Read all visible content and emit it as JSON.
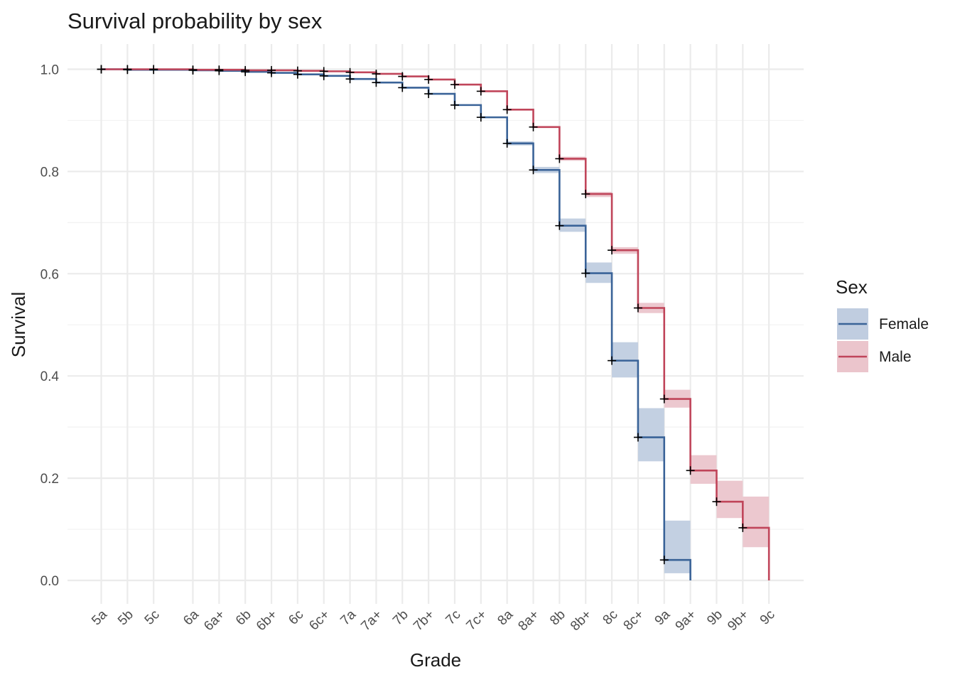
{
  "chart_data": {
    "type": "line",
    "subtype": "kaplan-meier step survival curve with confidence bands",
    "title": "Survival probability by sex",
    "xlabel": "Grade",
    "ylabel": "Survival",
    "ylim": [
      0,
      1
    ],
    "yticks": [
      "0.0",
      "0.2",
      "0.4",
      "0.6",
      "0.8",
      "1.0"
    ],
    "ytick_values": [
      0,
      0.2,
      0.4,
      0.6,
      0.8,
      1.0
    ],
    "categories": [
      "5a",
      "5b",
      "5c",
      "6a",
      "6a+",
      "6b",
      "6b+",
      "6c",
      "6c+",
      "7a",
      "7a+",
      "7b",
      "7b+",
      "7c",
      "7c+",
      "8a",
      "8a+",
      "8b",
      "8b+",
      "8c",
      "8c+",
      "9a",
      "9a+",
      "9b",
      "9b+",
      "9c"
    ],
    "x_positions": [
      1,
      2,
      3,
      4.5,
      5.5,
      6.5,
      7.5,
      8.5,
      9.5,
      10.5,
      11.5,
      12.5,
      13.5,
      14.5,
      15.5,
      16.5,
      17.5,
      18.5,
      19.5,
      20.5,
      21.5,
      22.5,
      23.5,
      24.5,
      25.5,
      26.5
    ],
    "grid": true,
    "legend": {
      "title": "Sex",
      "position": "right"
    },
    "series": [
      {
        "name": "Female",
        "color": "#3a6398",
        "band_color": "#c0cde0",
        "steps": [
          {
            "x": 1,
            "y": 1.0
          },
          {
            "x": 2,
            "y": 0.999
          },
          {
            "x": 3,
            "y": 0.999
          },
          {
            "x": 4.5,
            "y": 0.998
          },
          {
            "x": 5.5,
            "y": 0.997
          },
          {
            "x": 6.5,
            "y": 0.995
          },
          {
            "x": 7.5,
            "y": 0.993
          },
          {
            "x": 8.5,
            "y": 0.99
          },
          {
            "x": 9.5,
            "y": 0.987
          },
          {
            "x": 10.5,
            "y": 0.981
          },
          {
            "x": 11.5,
            "y": 0.974
          },
          {
            "x": 12.5,
            "y": 0.964
          },
          {
            "x": 13.5,
            "y": 0.952
          },
          {
            "x": 14.5,
            "y": 0.93
          },
          {
            "x": 15.5,
            "y": 0.906
          },
          {
            "x": 16.5,
            "y": 0.855
          },
          {
            "x": 17.5,
            "y": 0.803
          },
          {
            "x": 18.5,
            "y": 0.694
          },
          {
            "x": 19.5,
            "y": 0.601
          },
          {
            "x": 20.5,
            "y": 0.43
          },
          {
            "x": 21.5,
            "y": 0.28
          },
          {
            "x": 22.5,
            "y": 0.04
          },
          {
            "x": 23.5,
            "y": 0.0
          }
        ],
        "ci": [
          {
            "x": 16.5,
            "lo": 0.851,
            "hi": 0.859
          },
          {
            "x": 17.5,
            "lo": 0.797,
            "hi": 0.809
          },
          {
            "x": 18.5,
            "lo": 0.682,
            "hi": 0.708
          },
          {
            "x": 19.5,
            "lo": 0.582,
            "hi": 0.622
          },
          {
            "x": 20.5,
            "lo": 0.397,
            "hi": 0.466
          },
          {
            "x": 21.5,
            "lo": 0.233,
            "hi": 0.337
          },
          {
            "x": 22.5,
            "lo": 0.014,
            "hi": 0.117
          }
        ]
      },
      {
        "name": "Male",
        "color": "#c0455a",
        "band_color": "#ebc5cc",
        "steps": [
          {
            "x": 1,
            "y": 1.0
          },
          {
            "x": 2,
            "y": 1.0
          },
          {
            "x": 3,
            "y": 1.0
          },
          {
            "x": 4.5,
            "y": 0.999
          },
          {
            "x": 5.5,
            "y": 0.999
          },
          {
            "x": 6.5,
            "y": 0.998
          },
          {
            "x": 7.5,
            "y": 0.998
          },
          {
            "x": 8.5,
            "y": 0.997
          },
          {
            "x": 9.5,
            "y": 0.996
          },
          {
            "x": 10.5,
            "y": 0.994
          },
          {
            "x": 11.5,
            "y": 0.991
          },
          {
            "x": 12.5,
            "y": 0.986
          },
          {
            "x": 13.5,
            "y": 0.98
          },
          {
            "x": 14.5,
            "y": 0.97
          },
          {
            "x": 15.5,
            "y": 0.957
          },
          {
            "x": 16.5,
            "y": 0.921
          },
          {
            "x": 17.5,
            "y": 0.887
          },
          {
            "x": 18.5,
            "y": 0.825
          },
          {
            "x": 19.5,
            "y": 0.756
          },
          {
            "x": 20.5,
            "y": 0.646
          },
          {
            "x": 21.5,
            "y": 0.533
          },
          {
            "x": 22.5,
            "y": 0.355
          },
          {
            "x": 23.5,
            "y": 0.215
          },
          {
            "x": 24.5,
            "y": 0.154
          },
          {
            "x": 25.5,
            "y": 0.103
          },
          {
            "x": 26.5,
            "y": 0.0
          }
        ],
        "ci": [
          {
            "x": 18.5,
            "lo": 0.821,
            "hi": 0.829
          },
          {
            "x": 19.5,
            "lo": 0.75,
            "hi": 0.76
          },
          {
            "x": 20.5,
            "lo": 0.639,
            "hi": 0.652
          },
          {
            "x": 21.5,
            "lo": 0.523,
            "hi": 0.543
          },
          {
            "x": 22.5,
            "lo": 0.338,
            "hi": 0.373
          },
          {
            "x": 23.5,
            "lo": 0.189,
            "hi": 0.245
          },
          {
            "x": 24.5,
            "lo": 0.122,
            "hi": 0.195
          },
          {
            "x": 25.5,
            "lo": 0.065,
            "hi": 0.164
          }
        ]
      }
    ]
  }
}
